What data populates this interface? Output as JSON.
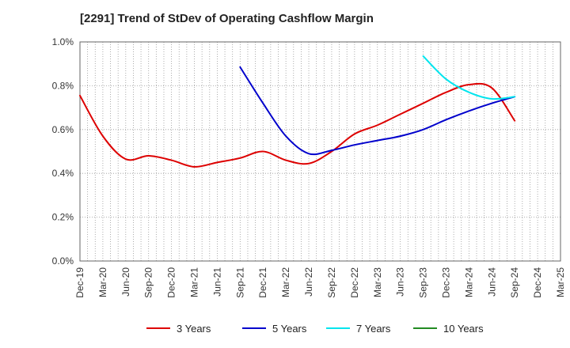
{
  "chart_data": {
    "type": "line",
    "title": "[2291]  Trend of StDev of Operating Cashflow Margin",
    "xlabel": "",
    "ylabel": "",
    "x": [
      "Dec-19",
      "Mar-20",
      "Jun-20",
      "Sep-20",
      "Dec-20",
      "Mar-21",
      "Jun-21",
      "Sep-21",
      "Dec-21",
      "Mar-22",
      "Jun-22",
      "Sep-22",
      "Dec-22",
      "Mar-23",
      "Jun-23",
      "Sep-23",
      "Dec-23",
      "Mar-24",
      "Jun-24",
      "Sep-24",
      "Dec-24",
      "Mar-25"
    ],
    "ylim": [
      0,
      1.0
    ],
    "yticks": [
      "0.0%",
      "0.2%",
      "0.4%",
      "0.6%",
      "0.8%",
      "1.0%"
    ],
    "grid": "dotted",
    "legend_position": "bottom",
    "series": [
      {
        "name": "3 Years",
        "color": "#dd0000",
        "values": [
          0.755,
          0.57,
          0.465,
          0.48,
          0.46,
          0.43,
          0.45,
          0.47,
          0.5,
          0.46,
          0.445,
          0.5,
          0.58,
          0.62,
          0.67,
          0.72,
          0.77,
          0.805,
          0.79,
          0.64,
          null,
          null
        ]
      },
      {
        "name": "5 Years",
        "color": "#0000cc",
        "values": [
          null,
          null,
          null,
          null,
          null,
          null,
          null,
          0.885,
          0.72,
          0.57,
          0.49,
          0.505,
          0.53,
          0.55,
          0.57,
          0.6,
          0.645,
          0.685,
          0.72,
          0.75,
          null,
          null
        ]
      },
      {
        "name": "7 Years",
        "color": "#00e5ee",
        "values": [
          null,
          null,
          null,
          null,
          null,
          null,
          null,
          null,
          null,
          null,
          null,
          null,
          null,
          null,
          null,
          0.935,
          0.83,
          0.77,
          0.74,
          0.75,
          null,
          null
        ]
      },
      {
        "name": "10 Years",
        "color": "#228b22",
        "values": [
          null,
          null,
          null,
          null,
          null,
          null,
          null,
          null,
          null,
          null,
          null,
          null,
          null,
          null,
          null,
          null,
          null,
          null,
          null,
          null,
          null,
          null
        ]
      }
    ]
  }
}
